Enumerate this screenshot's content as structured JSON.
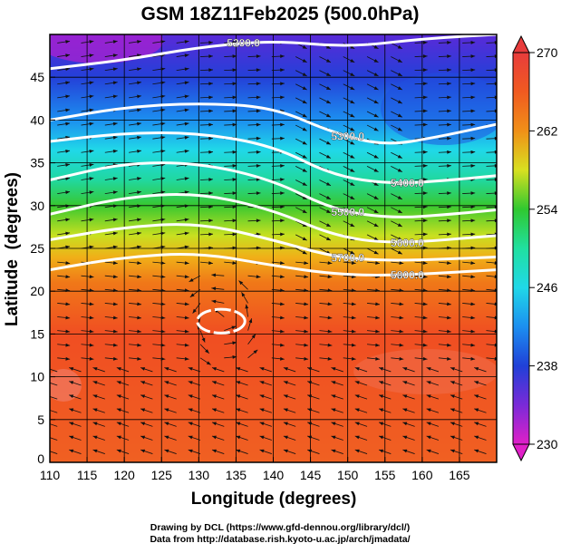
{
  "title": "GSM 18Z11Feb2025 (500.0hPa)",
  "footer": {
    "line1": "Drawing by DCL (https://www.gfd-dennou.org/library/dcl/)",
    "line2": "Data from http://database.rish.kyoto-u.ac.jp/arch/jmadata/"
  },
  "chart_data": {
    "type": "map",
    "title": "GSM 18Z11Feb2025 (500.0hPa)",
    "xlabel": "Longitude (degrees)",
    "ylabel": "Latitude  (degrees)",
    "xlim": [
      110,
      170
    ],
    "ylim": [
      0,
      50
    ],
    "xticks": [
      "110",
      "115",
      "120",
      "125",
      "130",
      "135",
      "140",
      "145",
      "150",
      "155",
      "160",
      "165"
    ],
    "yticks": [
      "0",
      "5",
      "10",
      "15",
      "20",
      "25",
      "30",
      "35",
      "40",
      "45"
    ],
    "grid": true,
    "colorbar": {
      "range": [
        230,
        270
      ],
      "ticks": [
        "230",
        "238",
        "246",
        "254",
        "262",
        "270"
      ],
      "colors": {
        "230": "#e020c8",
        "234": "#7a2ad8",
        "238": "#2040d8",
        "242": "#1c8ff0",
        "246": "#20d8e8",
        "250": "#20e0a0",
        "254": "#30c830",
        "258": "#d8e020",
        "262": "#f09018",
        "266": "#f05a20",
        "270": "#e83c3c"
      },
      "placement": "right"
    },
    "contours": [
      {
        "label": "5200.0",
        "points": [
          [
            110,
            46
          ],
          [
            120,
            47
          ],
          [
            130,
            48.5
          ],
          [
            140,
            49.3
          ],
          [
            150,
            48.5
          ],
          [
            160,
            49.5
          ],
          [
            170,
            50
          ]
        ]
      },
      {
        "label": "5300.0",
        "points": [
          [
            110,
            40
          ],
          [
            120,
            41.5
          ],
          [
            130,
            42
          ],
          [
            140,
            41.5
          ],
          [
            148,
            38.5
          ],
          [
            155,
            37
          ],
          [
            162,
            38
          ],
          [
            170,
            39.5
          ]
        ]
      },
      {
        "label": "5400.0",
        "points": [
          [
            110,
            37.5
          ],
          [
            120,
            38.5
          ],
          [
            130,
            38.5
          ],
          [
            140,
            37
          ],
          [
            148,
            33.5
          ],
          [
            156,
            32.5
          ],
          [
            164,
            33
          ],
          [
            170,
            33.5
          ]
        ]
      },
      {
        "label": "5500.0",
        "points": [
          [
            110,
            33
          ],
          [
            120,
            35
          ],
          [
            130,
            35
          ],
          [
            140,
            33
          ],
          [
            148,
            29.5
          ],
          [
            156,
            28.5
          ],
          [
            164,
            29
          ],
          [
            170,
            29.5
          ]
        ]
      },
      {
        "label": "5600.0",
        "points": [
          [
            110,
            29
          ],
          [
            120,
            31
          ],
          [
            130,
            31.5
          ],
          [
            140,
            29.5
          ],
          [
            148,
            26.5
          ],
          [
            156,
            25.5
          ],
          [
            170,
            26.5
          ]
        ]
      },
      {
        "label": "5700.0",
        "points": [
          [
            110,
            26
          ],
          [
            120,
            27.5
          ],
          [
            130,
            28
          ],
          [
            140,
            26
          ],
          [
            148,
            24
          ],
          [
            156,
            23.5
          ],
          [
            170,
            24
          ]
        ]
      },
      {
        "label": "5800.0",
        "points": [
          [
            110,
            22.5
          ],
          [
            120,
            24
          ],
          [
            130,
            24.5
          ],
          [
            140,
            23
          ],
          [
            148,
            22
          ],
          [
            156,
            21.8
          ],
          [
            170,
            22.5
          ]
        ]
      }
    ],
    "closed_contours": [
      {
        "center": [
          133,
          16.5
        ],
        "rx": 3.2,
        "ry": 1.4
      }
    ]
  }
}
